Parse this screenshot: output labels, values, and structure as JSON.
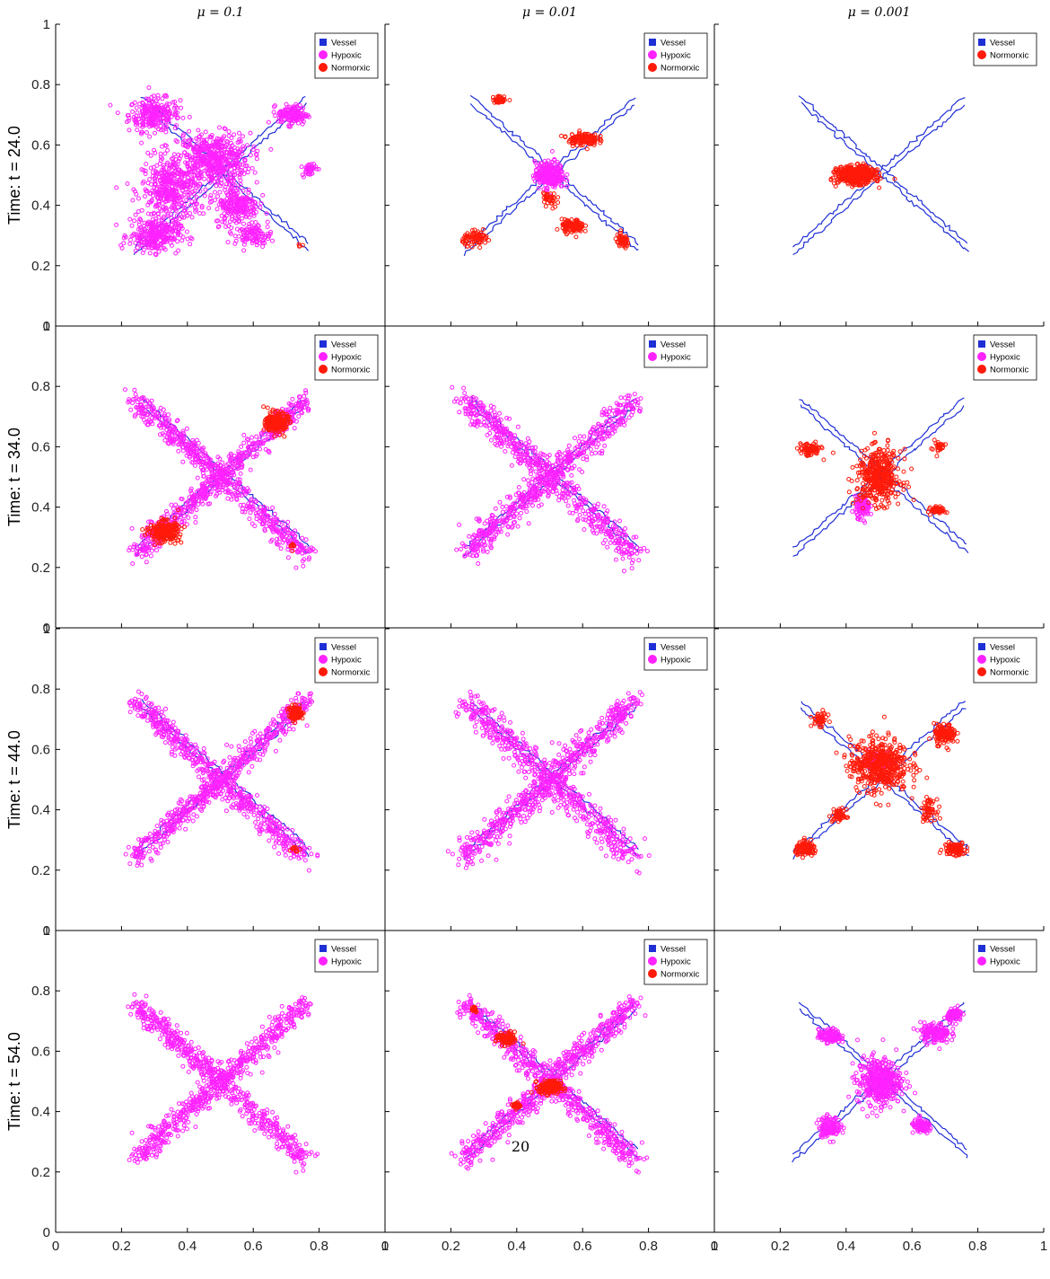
{
  "page_number": "20",
  "chart_data": {
    "type": "scatter",
    "layout": "4x3 grid of scatter panels",
    "column_titles": [
      "μ = 0.1",
      "μ = 0.01",
      "μ = 0.001"
    ],
    "row_labels": [
      "Time: t = 24.0",
      "Time: t = 34.0",
      "Time: t = 44.0",
      "Time: t = 54.0"
    ],
    "xlim": [
      0,
      1
    ],
    "ylim": [
      0,
      1
    ],
    "x_ticks": [
      "0",
      "0.2",
      "0.4",
      "0.6",
      "0.8",
      "1"
    ],
    "y_ticks": [
      "0",
      "0.2",
      "0.4",
      "0.6",
      "0.8",
      "1"
    ],
    "grid": false,
    "legend_position": "top-right",
    "colors": {
      "Vessel": "#1f2fd6",
      "Hypoxic": "#ff22ff",
      "Normorxic": "#ff1a0a"
    },
    "panels": [
      {
        "row": 0,
        "col": 0,
        "legend": [
          "Vessel",
          "Hypoxic",
          "Normorxic"
        ],
        "vessel": true,
        "hypoxic": [
          [
            0.3,
            0.7,
            0.07,
            0.05,
            260
          ],
          [
            0.48,
            0.55,
            0.1,
            0.08,
            500
          ],
          [
            0.35,
            0.45,
            0.08,
            0.1,
            400
          ],
          [
            0.3,
            0.3,
            0.07,
            0.05,
            260
          ],
          [
            0.72,
            0.7,
            0.04,
            0.03,
            140
          ],
          [
            0.55,
            0.4,
            0.06,
            0.06,
            220
          ],
          [
            0.77,
            0.52,
            0.02,
            0.02,
            40
          ],
          [
            0.6,
            0.3,
            0.05,
            0.03,
            100
          ]
        ],
        "normoxic": [
          [
            0.74,
            0.27,
            0.01,
            0.01,
            5
          ]
        ]
      },
      {
        "row": 0,
        "col": 1,
        "legend": [
          "Vessel",
          "Hypoxic",
          "Normorxic"
        ],
        "vessel": true,
        "hypoxic": [
          [
            0.5,
            0.5,
            0.04,
            0.04,
            260
          ]
        ],
        "normoxic": [
          [
            0.35,
            0.75,
            0.02,
            0.01,
            40
          ],
          [
            0.6,
            0.62,
            0.04,
            0.02,
            140
          ],
          [
            0.57,
            0.33,
            0.03,
            0.02,
            120
          ],
          [
            0.28,
            0.29,
            0.04,
            0.02,
            80
          ],
          [
            0.72,
            0.28,
            0.02,
            0.02,
            60
          ],
          [
            0.5,
            0.42,
            0.02,
            0.03,
            40
          ]
        ]
      },
      {
        "row": 0,
        "col": 2,
        "legend": [
          "Vessel",
          "Normorxic"
        ],
        "vessel": true,
        "hypoxic": [],
        "normoxic": [
          [
            0.43,
            0.5,
            0.05,
            0.025,
            600
          ]
        ]
      },
      {
        "row": 1,
        "col": 0,
        "legend": [
          "Vessel",
          "Hypoxic",
          "Normorxic"
        ],
        "vessel": true,
        "x_shape": 0.05,
        "hypoxic": [],
        "normoxic": [
          [
            0.67,
            0.68,
            0.03,
            0.03,
            220
          ],
          [
            0.33,
            0.32,
            0.04,
            0.03,
            260
          ],
          [
            0.72,
            0.27,
            0.01,
            0.01,
            10
          ]
        ]
      },
      {
        "row": 1,
        "col": 1,
        "legend": [
          "Vessel",
          "Hypoxic"
        ],
        "vessel": true,
        "x_shape": 0.06,
        "hypoxic": [],
        "normoxic": []
      },
      {
        "row": 1,
        "col": 2,
        "legend": [
          "Vessel",
          "Hypoxic",
          "Normorxic"
        ],
        "vessel": true,
        "hypoxic": [
          [
            0.45,
            0.4,
            0.02,
            0.03,
            120
          ]
        ],
        "normoxic": [
          [
            0.5,
            0.5,
            0.06,
            0.08,
            420
          ],
          [
            0.29,
            0.59,
            0.03,
            0.02,
            80
          ],
          [
            0.68,
            0.39,
            0.02,
            0.01,
            60
          ],
          [
            0.68,
            0.6,
            0.02,
            0.02,
            30
          ]
        ]
      },
      {
        "row": 2,
        "col": 0,
        "legend": [
          "Vessel",
          "Hypoxic",
          "Normorxic"
        ],
        "vessel": true,
        "x_shape": 0.05,
        "hypoxic": [],
        "normoxic": [
          [
            0.73,
            0.72,
            0.02,
            0.02,
            120
          ],
          [
            0.73,
            0.27,
            0.01,
            0.01,
            10
          ]
        ]
      },
      {
        "row": 2,
        "col": 1,
        "legend": [
          "Vessel",
          "Hypoxic"
        ],
        "vessel": true,
        "x_shape": 0.06,
        "hypoxic": [],
        "normoxic": []
      },
      {
        "row": 2,
        "col": 2,
        "legend": [
          "Vessel",
          "Hypoxic",
          "Normorxic"
        ],
        "vessel": true,
        "hypoxic": [
          [
            0.5,
            0.56,
            0.03,
            0.02,
            140
          ]
        ],
        "normoxic": [
          [
            0.5,
            0.55,
            0.08,
            0.08,
            500
          ],
          [
            0.7,
            0.65,
            0.03,
            0.03,
            140
          ],
          [
            0.28,
            0.27,
            0.03,
            0.02,
            110
          ],
          [
            0.73,
            0.27,
            0.03,
            0.02,
            110
          ],
          [
            0.65,
            0.4,
            0.02,
            0.03,
            60
          ],
          [
            0.38,
            0.38,
            0.02,
            0.02,
            50
          ],
          [
            0.32,
            0.7,
            0.02,
            0.02,
            50
          ]
        ]
      },
      {
        "row": 3,
        "col": 0,
        "legend": [
          "Vessel",
          "Hypoxic"
        ],
        "vessel": false,
        "x_shape": 0.05,
        "hypoxic": [],
        "normoxic": []
      },
      {
        "row": 3,
        "col": 1,
        "legend": [
          "Vessel",
          "Hypoxic",
          "Normorxic"
        ],
        "vessel": true,
        "x_shape": 0.05,
        "hypoxic": [],
        "normoxic": [
          [
            0.37,
            0.64,
            0.03,
            0.02,
            90
          ],
          [
            0.5,
            0.48,
            0.03,
            0.02,
            200
          ],
          [
            0.4,
            0.42,
            0.01,
            0.01,
            40
          ],
          [
            0.27,
            0.74,
            0.01,
            0.01,
            20
          ]
        ]
      },
      {
        "row": 3,
        "col": 2,
        "legend": [
          "Vessel",
          "Hypoxic"
        ],
        "vessel": true,
        "hypoxic": [
          [
            0.5,
            0.5,
            0.06,
            0.07,
            420
          ],
          [
            0.35,
            0.65,
            0.03,
            0.02,
            140
          ],
          [
            0.35,
            0.35,
            0.03,
            0.03,
            140
          ],
          [
            0.67,
            0.66,
            0.04,
            0.03,
            160
          ],
          [
            0.73,
            0.72,
            0.02,
            0.02,
            90
          ],
          [
            0.63,
            0.35,
            0.03,
            0.02,
            90
          ]
        ],
        "normoxic": []
      }
    ]
  }
}
